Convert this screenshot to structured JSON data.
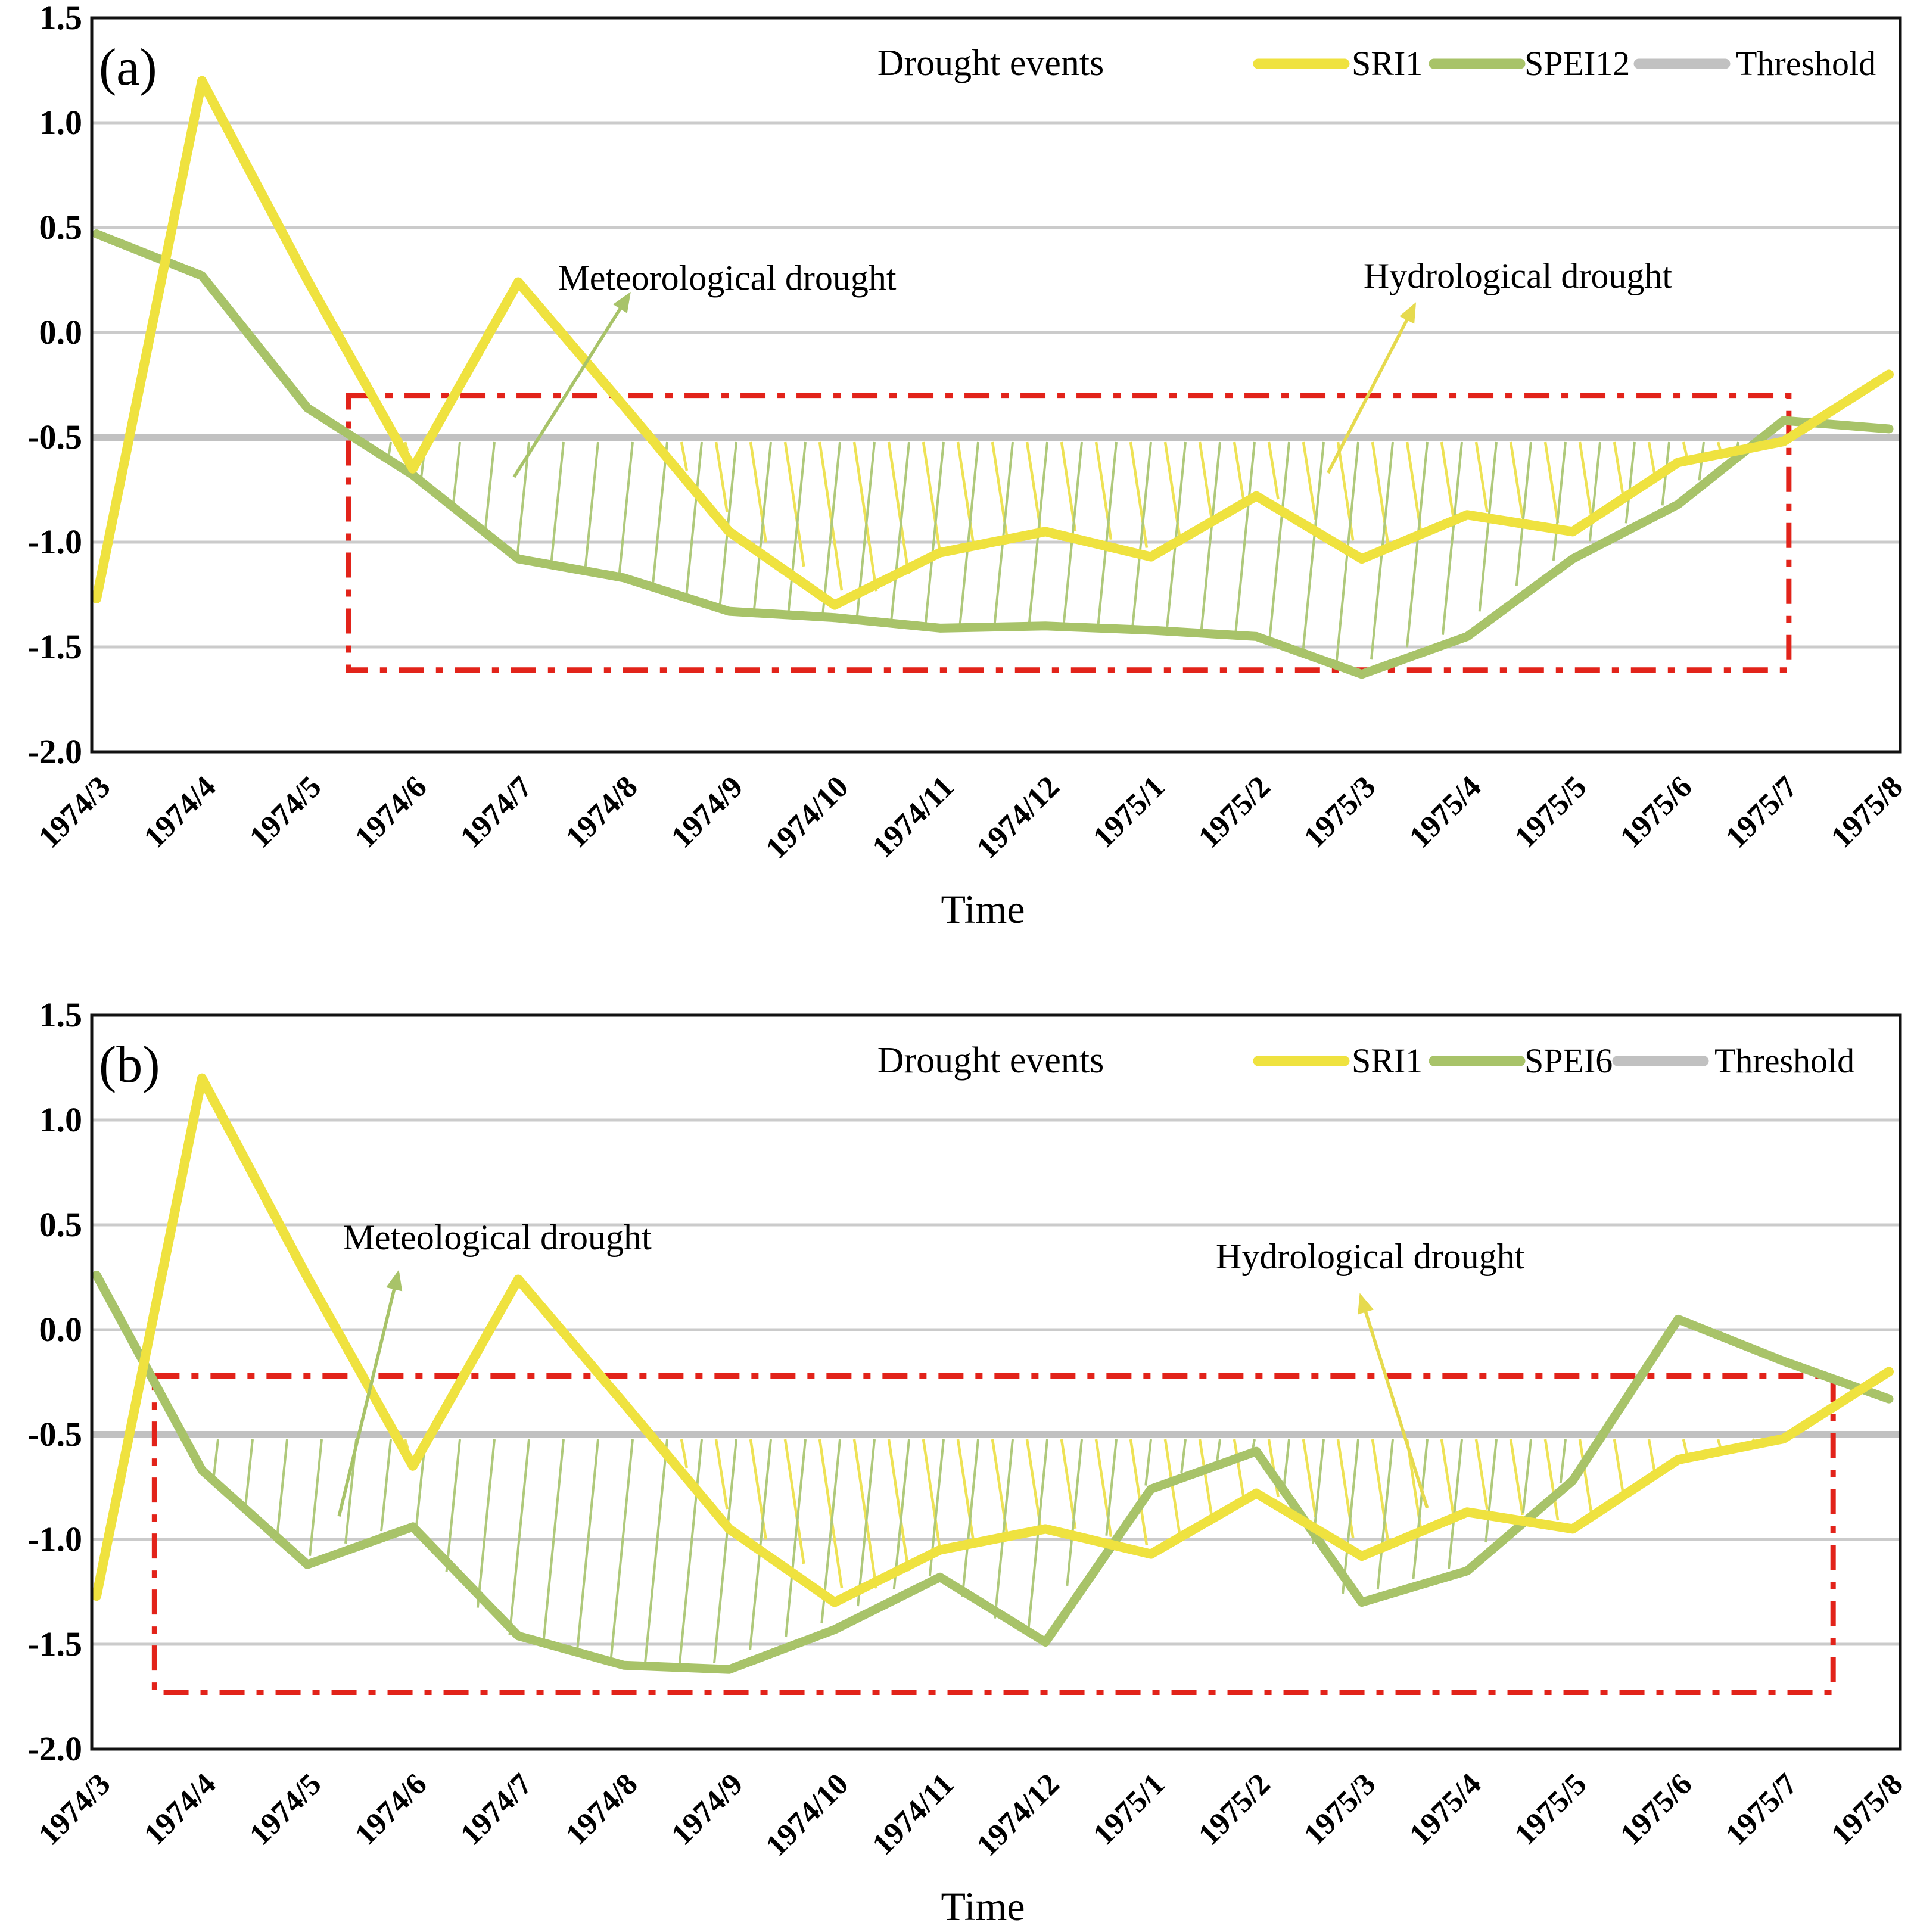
{
  "figure": {
    "description": "Two stacked drought-event line charts comparing SRI1 with SPEI indices against a threshold"
  },
  "chart_data": [
    {
      "type": "line",
      "panel_label": "(a)",
      "title": "Drought events",
      "xlabel": "Time",
      "categories": [
        "1974/3",
        "1974/4",
        "1974/5",
        "1974/6",
        "1974/7",
        "1974/8",
        "1974/9",
        "1974/10",
        "1974/11",
        "1974/12",
        "1975/1",
        "1975/2",
        "1975/3",
        "1975/4",
        "1975/5",
        "1975/6",
        "1975/7",
        "1975/8"
      ],
      "y_tick_labels": [
        "1.5",
        "1.0",
        "0.5",
        "0.0",
        "-0.5",
        "-1.0",
        "-1.5",
        "-2.0"
      ],
      "ylim": [
        -2.0,
        1.5
      ],
      "grid": true,
      "legend_position": "top-right",
      "threshold": {
        "label": "Threshold",
        "value": -0.5,
        "color": "#C1C1C1"
      },
      "series": [
        {
          "name": "SRI1",
          "color": "#EFE23F",
          "values": [
            -1.27,
            1.2,
            0.25,
            -0.65,
            0.24,
            -0.35,
            -0.95,
            -1.3,
            -1.05,
            -0.95,
            -1.07,
            -0.78,
            -1.08,
            -0.87,
            -0.95,
            -0.62,
            -0.52,
            -0.2
          ]
        },
        {
          "name": "SPEI12",
          "color": "#A8C369",
          "values": [
            0.47,
            0.27,
            -0.36,
            -0.68,
            -1.08,
            -1.17,
            -1.33,
            -1.36,
            -1.41,
            -1.4,
            -1.42,
            -1.45,
            -1.63,
            -1.45,
            -1.08,
            -0.82,
            -0.42,
            -0.46
          ]
        }
      ],
      "drought_box": {
        "color": "#E2231A",
        "x_from": 2.39,
        "x_to": 16.05,
        "y_from": -0.3,
        "y_to": -1.61
      },
      "annotations": [
        {
          "text": "Meteorological drought",
          "color": "#A8C369",
          "text_x": 5.98,
          "text_y": 0.26,
          "arrow_from_x": 3.96,
          "arrow_from_y": -0.69,
          "arrow_to_x": 5.05,
          "arrow_to_y": 0.18
        },
        {
          "text": "Hydrological drought",
          "color": "#E6DA4E",
          "text_x": 13.48,
          "text_y": 0.27,
          "arrow_from_x": 11.68,
          "arrow_from_y": -0.67,
          "arrow_to_x": 12.5,
          "arrow_to_y": 0.13
        }
      ]
    },
    {
      "type": "line",
      "panel_label": "(b)",
      "title": "Drought events",
      "xlabel": "Time",
      "categories": [
        "1974/3",
        "1974/4",
        "1974/5",
        "1974/6",
        "1974/7",
        "1974/8",
        "1974/9",
        "1974/10",
        "1974/11",
        "1974/12",
        "1975/1",
        "1975/2",
        "1975/3",
        "1975/4",
        "1975/5",
        "1975/6",
        "1975/7",
        "1975/8"
      ],
      "y_tick_labels": [
        "1.5",
        "1.0",
        "0.5",
        "0.0",
        "-0.5",
        "-1.0",
        "-1.5",
        "-2.0"
      ],
      "ylim": [
        -2.0,
        1.5
      ],
      "grid": true,
      "legend_position": "top-right",
      "threshold": {
        "label": "Threshold",
        "value": -0.5,
        "color": "#C1C1C1"
      },
      "series": [
        {
          "name": "SRI1",
          "color": "#EFE23F",
          "values": [
            -1.27,
            1.2,
            0.25,
            -0.65,
            0.24,
            -0.35,
            -0.95,
            -1.3,
            -1.05,
            -0.95,
            -1.07,
            -0.78,
            -1.08,
            -0.87,
            -0.95,
            -0.62,
            -0.52,
            -0.2
          ]
        },
        {
          "name": "SPEI6",
          "color": "#A8C369",
          "values": [
            0.26,
            -0.67,
            -1.12,
            -0.94,
            -1.46,
            -1.6,
            -1.62,
            -1.43,
            -1.18,
            -1.49,
            -0.76,
            -0.58,
            -1.3,
            -1.15,
            -0.72,
            0.05,
            -0.15,
            -0.33
          ]
        }
      ],
      "drought_box": {
        "color": "#E2231A",
        "x_from": 0.55,
        "x_to": 16.47,
        "y_from": -0.22,
        "y_to": -1.73
      },
      "annotations": [
        {
          "text": "Meteological drought",
          "color": "#A8C369",
          "text_x": 3.8,
          "text_y": 0.44,
          "arrow_from_x": 2.3,
          "arrow_from_y": -0.89,
          "arrow_to_x": 2.86,
          "arrow_to_y": 0.27
        },
        {
          "text": "Hydrological drought",
          "color": "#E6DA4E",
          "text_x": 12.08,
          "text_y": 0.35,
          "arrow_from_x": 12.62,
          "arrow_from_y": -0.85,
          "arrow_to_x": 11.99,
          "arrow_to_y": 0.16
        }
      ]
    }
  ]
}
